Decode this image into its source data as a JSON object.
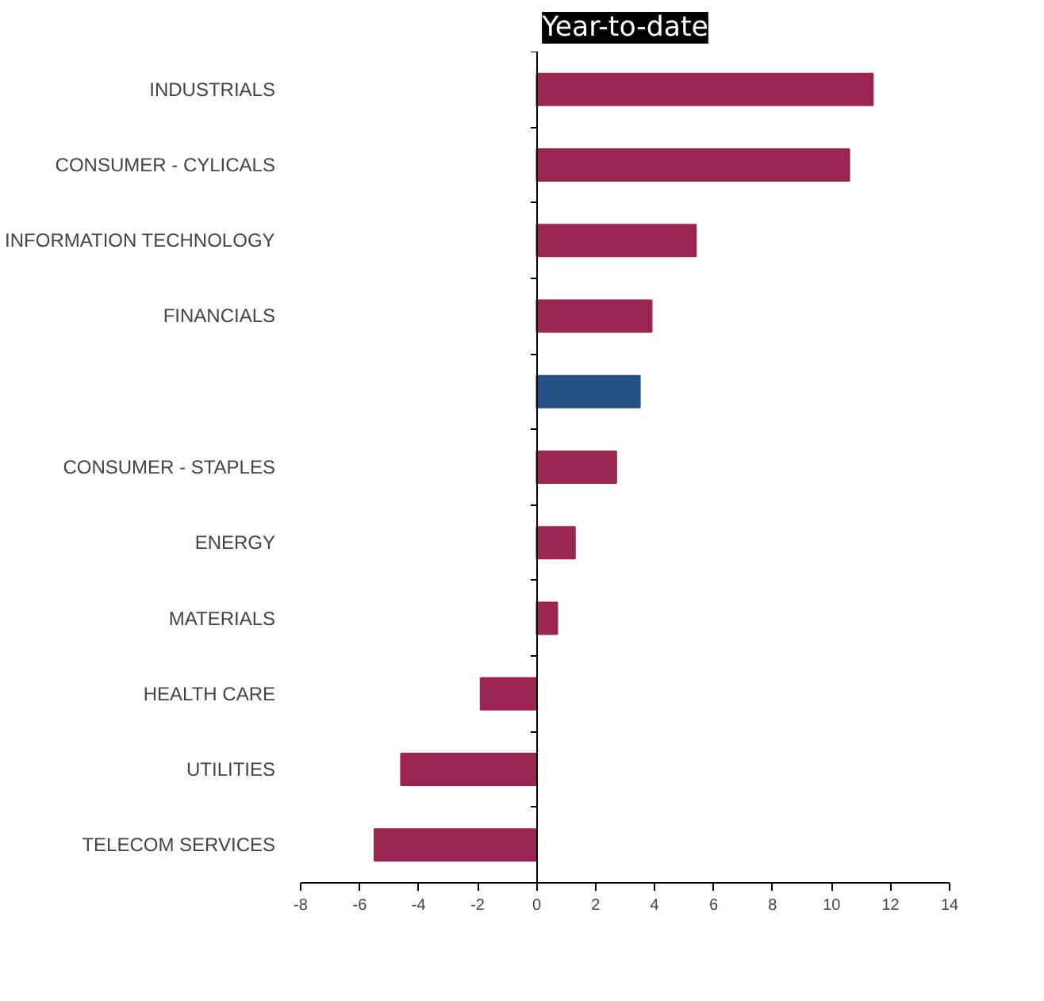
{
  "chart_data": {
    "type": "bar",
    "orientation": "horizontal",
    "title": "Year-to-date",
    "categories": [
      "INDUSTRIALS",
      "CONSUMER - CYLICALS",
      "INFORMATION TECHNOLOGY",
      "FINANCIALS",
      null,
      "CONSUMER - STAPLES",
      "ENERGY",
      "MATERIALS",
      "HEALTH CARE",
      "UTILITIES",
      "TELECOM SERVICES"
    ],
    "values": [
      11.4,
      10.6,
      5.4,
      3.9,
      3.5,
      2.7,
      1.3,
      0.7,
      -1.9,
      -4.6,
      -5.5
    ],
    "colors": [
      "#9c2450",
      "#9c2450",
      "#9c2450",
      "#9c2450",
      "#245283",
      "#9c2450",
      "#9c2450",
      "#9c2450",
      "#9c2450",
      "#9c2450",
      "#9c2450"
    ],
    "xlim": [
      -8,
      14
    ],
    "xticks": [
      -8,
      -6,
      -4,
      -2,
      0,
      2,
      4,
      6,
      8,
      10,
      12,
      14
    ]
  }
}
